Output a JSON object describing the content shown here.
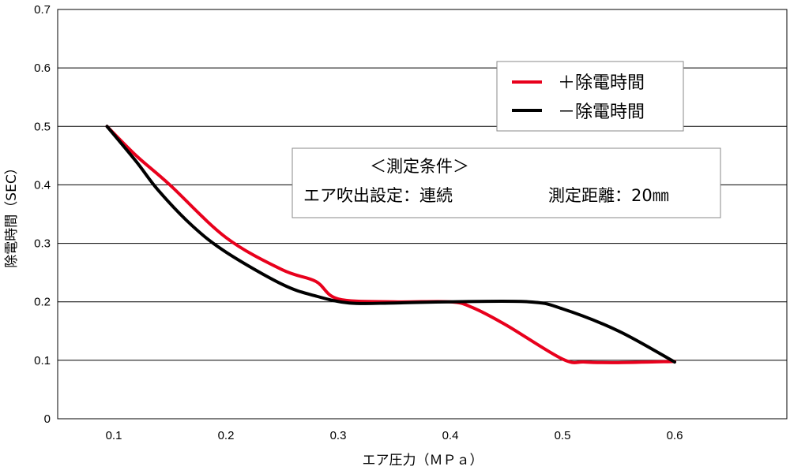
{
  "chart_data": {
    "type": "line",
    "xlabel": "エア圧力（ＭＰａ）",
    "ylabel": "除電時間（SEC）",
    "xlim": [
      0.05,
      0.7
    ],
    "ylim": [
      0,
      0.7
    ],
    "xticks": [
      "0.1",
      "0.2",
      "0.3",
      "0.4",
      "0.5",
      "0.6"
    ],
    "yticks": [
      "0",
      "0.1",
      "0.2",
      "0.3",
      "0.4",
      "0.5",
      "0.6",
      "0.7"
    ],
    "grid": "horizontal",
    "legend_position": "top-right",
    "series": [
      {
        "name": "＋除電時間",
        "color": "#e8001c",
        "points": [
          [
            0.094,
            0.5
          ],
          [
            0.12,
            0.45
          ],
          [
            0.15,
            0.4
          ],
          [
            0.2,
            0.31
          ],
          [
            0.25,
            0.255
          ],
          [
            0.28,
            0.235
          ],
          [
            0.3,
            0.205
          ],
          [
            0.35,
            0.2
          ],
          [
            0.4,
            0.2
          ],
          [
            0.42,
            0.19
          ],
          [
            0.45,
            0.16
          ],
          [
            0.5,
            0.102
          ],
          [
            0.52,
            0.097
          ],
          [
            0.55,
            0.096
          ],
          [
            0.6,
            0.098
          ]
        ]
      },
      {
        "name": "－除電時間",
        "color": "#000000",
        "points": [
          [
            0.094,
            0.5
          ],
          [
            0.12,
            0.44
          ],
          [
            0.14,
            0.39
          ],
          [
            0.17,
            0.33
          ],
          [
            0.2,
            0.285
          ],
          [
            0.25,
            0.23
          ],
          [
            0.28,
            0.21
          ],
          [
            0.31,
            0.198
          ],
          [
            0.35,
            0.198
          ],
          [
            0.4,
            0.2
          ],
          [
            0.47,
            0.2
          ],
          [
            0.5,
            0.188
          ],
          [
            0.55,
            0.15
          ],
          [
            0.6,
            0.097
          ]
        ]
      }
    ],
    "annotation": {
      "title": "＜測定条件＞",
      "line1": "エア吹出設定：連続",
      "line2": "測定距離：20㎜"
    }
  }
}
